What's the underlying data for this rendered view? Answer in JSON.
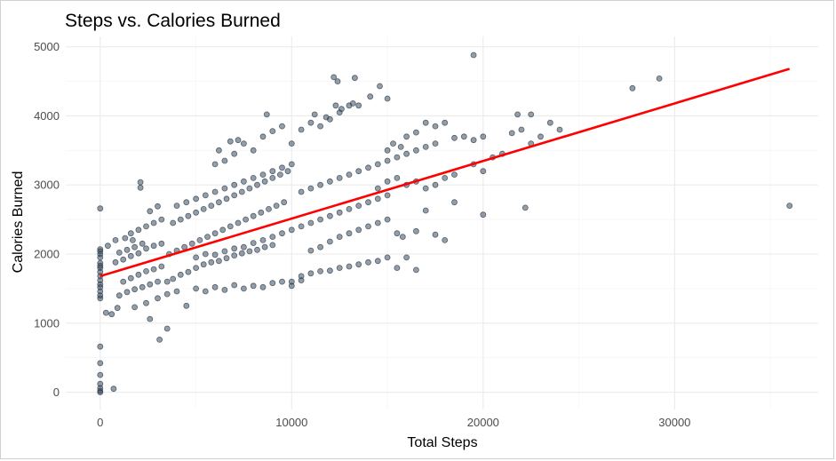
{
  "chart_data": {
    "type": "scatter",
    "title": "Steps vs. Calories Burned",
    "xlabel": "Total Steps",
    "ylabel": "Calories Burned",
    "xlim": [
      -1800,
      37500
    ],
    "ylim": [
      -250,
      5150
    ],
    "x_ticks": [
      0,
      10000,
      20000,
      30000
    ],
    "x_tick_labels": [
      "0",
      "10000",
      "20000",
      "30000"
    ],
    "y_ticks": [
      0,
      1000,
      2000,
      3000,
      4000,
      5000
    ],
    "y_tick_labels": [
      "0",
      "1000",
      "2000",
      "3000",
      "4000",
      "5000"
    ],
    "grid": true,
    "point_color": "#2c3e50",
    "trend_color": "#ff0000",
    "trend_line": {
      "x": [
        0,
        36000
      ],
      "y": [
        1680,
        4680
      ]
    },
    "points": [
      [
        0,
        0
      ],
      [
        0,
        20
      ],
      [
        0,
        60
      ],
      [
        0,
        120
      ],
      [
        0,
        250
      ],
      [
        0,
        420
      ],
      [
        0,
        660
      ],
      [
        700,
        50
      ],
      [
        0,
        1360
      ],
      [
        0,
        1400
      ],
      [
        0,
        1460
      ],
      [
        0,
        1520
      ],
      [
        0,
        1560
      ],
      [
        0,
        1620
      ],
      [
        0,
        1680
      ],
      [
        0,
        1740
      ],
      [
        0,
        1800
      ],
      [
        0,
        1830
      ],
      [
        0,
        1870
      ],
      [
        0,
        1950
      ],
      [
        0,
        2000
      ],
      [
        0,
        2040
      ],
      [
        0,
        2070
      ],
      [
        0,
        2660
      ],
      [
        300,
        1150
      ],
      [
        600,
        1130
      ],
      [
        900,
        1220
      ],
      [
        400,
        2120
      ],
      [
        800,
        2200
      ],
      [
        1300,
        2230
      ],
      [
        1700,
        2200
      ],
      [
        1000,
        1400
      ],
      [
        1400,
        1450
      ],
      [
        1800,
        1490
      ],
      [
        2200,
        1520
      ],
      [
        2600,
        1560
      ],
      [
        3000,
        1600
      ],
      [
        1200,
        1600
      ],
      [
        1600,
        1650
      ],
      [
        2000,
        1700
      ],
      [
        2400,
        1750
      ],
      [
        2800,
        1780
      ],
      [
        3200,
        1820
      ],
      [
        800,
        1880
      ],
      [
        1200,
        1920
      ],
      [
        1600,
        1970
      ],
      [
        2000,
        2010
      ],
      [
        2400,
        2080
      ],
      [
        2800,
        2120
      ],
      [
        3200,
        2150
      ],
      [
        1000,
        2020
      ],
      [
        1400,
        2060
      ],
      [
        1800,
        2100
      ],
      [
        2200,
        2150
      ],
      [
        1600,
        2300
      ],
      [
        2000,
        2350
      ],
      [
        2400,
        2400
      ],
      [
        2800,
        2450
      ],
      [
        3200,
        2500
      ],
      [
        2100,
        2960
      ],
      [
        2100,
        3040
      ],
      [
        2600,
        2620
      ],
      [
        3000,
        2690
      ],
      [
        1800,
        1230
      ],
      [
        2400,
        1290
      ],
      [
        3000,
        1360
      ],
      [
        3500,
        1420
      ],
      [
        4000,
        1460
      ],
      [
        3100,
        760
      ],
      [
        3500,
        920
      ],
      [
        2600,
        1060
      ],
      [
        4500,
        1250
      ],
      [
        3500,
        1600
      ],
      [
        3800,
        1640
      ],
      [
        4200,
        1700
      ],
      [
        4600,
        1740
      ],
      [
        5000,
        1800
      ],
      [
        5400,
        1850
      ],
      [
        5800,
        1880
      ],
      [
        6200,
        1900
      ],
      [
        6600,
        1940
      ],
      [
        7000,
        1980
      ],
      [
        7400,
        2010
      ],
      [
        7800,
        2040
      ],
      [
        8200,
        2060
      ],
      [
        8600,
        2100
      ],
      [
        9000,
        2130
      ],
      [
        3600,
        2000
      ],
      [
        4000,
        2050
      ],
      [
        4400,
        2100
      ],
      [
        4800,
        2150
      ],
      [
        5200,
        2200
      ],
      [
        5600,
        2250
      ],
      [
        6000,
        2300
      ],
      [
        6400,
        2350
      ],
      [
        6800,
        2400
      ],
      [
        7200,
        2450
      ],
      [
        7600,
        2500
      ],
      [
        8000,
        2550
      ],
      [
        8400,
        2600
      ],
      [
        8800,
        2650
      ],
      [
        9200,
        2700
      ],
      [
        9600,
        2750
      ],
      [
        3800,
        2450
      ],
      [
        4200,
        2500
      ],
      [
        4600,
        2550
      ],
      [
        5000,
        2600
      ],
      [
        5400,
        2650
      ],
      [
        5800,
        2700
      ],
      [
        6200,
        2750
      ],
      [
        6600,
        2800
      ],
      [
        7000,
        2850
      ],
      [
        7400,
        2900
      ],
      [
        7800,
        2950
      ],
      [
        8200,
        3000
      ],
      [
        8600,
        3050
      ],
      [
        9000,
        3100
      ],
      [
        9400,
        3150
      ],
      [
        9800,
        3200
      ],
      [
        4000,
        2700
      ],
      [
        4500,
        2750
      ],
      [
        5000,
        2800
      ],
      [
        5500,
        2850
      ],
      [
        6000,
        2900
      ],
      [
        6500,
        2950
      ],
      [
        7000,
        3000
      ],
      [
        7500,
        3050
      ],
      [
        8000,
        3100
      ],
      [
        8500,
        3150
      ],
      [
        9000,
        3200
      ],
      [
        9500,
        3250
      ],
      [
        10000,
        3300
      ],
      [
        5000,
        1500
      ],
      [
        5500,
        1460
      ],
      [
        6000,
        1520
      ],
      [
        6500,
        1480
      ],
      [
        7000,
        1550
      ],
      [
        7500,
        1500
      ],
      [
        8000,
        1540
      ],
      [
        8500,
        1520
      ],
      [
        9000,
        1580
      ],
      [
        9500,
        1600
      ],
      [
        10000,
        1540
      ],
      [
        10500,
        1620
      ],
      [
        5000,
        1950
      ],
      [
        5500,
        2000
      ],
      [
        6000,
        1990
      ],
      [
        6500,
        2040
      ],
      [
        7000,
        2080
      ],
      [
        7500,
        2100
      ],
      [
        8000,
        2160
      ],
      [
        8500,
        2200
      ],
      [
        9000,
        2250
      ],
      [
        9500,
        2300
      ],
      [
        10000,
        2350
      ],
      [
        10500,
        2400
      ],
      [
        11000,
        2450
      ],
      [
        11500,
        2500
      ],
      [
        12000,
        2550
      ],
      [
        12500,
        2600
      ],
      [
        13000,
        2650
      ],
      [
        13500,
        2700
      ],
      [
        14000,
        2750
      ],
      [
        14500,
        2800
      ],
      [
        15000,
        2850
      ],
      [
        6000,
        3300
      ],
      [
        6500,
        3350
      ],
      [
        7000,
        3450
      ],
      [
        7500,
        3600
      ],
      [
        8000,
        3500
      ],
      [
        8500,
        3700
      ],
      [
        9000,
        3780
      ],
      [
        9500,
        3850
      ],
      [
        10000,
        3600
      ],
      [
        10500,
        3800
      ],
      [
        11000,
        3900
      ],
      [
        11500,
        3850
      ],
      [
        12000,
        3950
      ],
      [
        12500,
        4050
      ],
      [
        13000,
        4150
      ],
      [
        6200,
        3500
      ],
      [
        6800,
        3630
      ],
      [
        7200,
        3650
      ],
      [
        8700,
        4020
      ],
      [
        11200,
        4020
      ],
      [
        11800,
        3980
      ],
      [
        12300,
        4150
      ],
      [
        12600,
        4100
      ],
      [
        13200,
        4180
      ],
      [
        13500,
        4150
      ],
      [
        12200,
        4560
      ],
      [
        12400,
        4500
      ],
      [
        13300,
        4550
      ],
      [
        14100,
        4280
      ],
      [
        14600,
        4430
      ],
      [
        15000,
        4250
      ],
      [
        10000,
        1600
      ],
      [
        10500,
        1680
      ],
      [
        11000,
        1720
      ],
      [
        11500,
        1750
      ],
      [
        12000,
        1760
      ],
      [
        12500,
        1800
      ],
      [
        13000,
        1820
      ],
      [
        13500,
        1850
      ],
      [
        14000,
        1880
      ],
      [
        14500,
        1900
      ],
      [
        15000,
        1950
      ],
      [
        15500,
        2300
      ],
      [
        15800,
        2250
      ],
      [
        15500,
        1800
      ],
      [
        16000,
        1950
      ],
      [
        16500,
        1770
      ],
      [
        11000,
        2050
      ],
      [
        11500,
        2100
      ],
      [
        12000,
        2180
      ],
      [
        12500,
        2250
      ],
      [
        13000,
        2300
      ],
      [
        13500,
        2350
      ],
      [
        14000,
        2400
      ],
      [
        14500,
        2450
      ],
      [
        15000,
        2500
      ],
      [
        10500,
        2900
      ],
      [
        11000,
        2950
      ],
      [
        11500,
        3000
      ],
      [
        12000,
        3050
      ],
      [
        12500,
        3100
      ],
      [
        13000,
        3150
      ],
      [
        13500,
        3200
      ],
      [
        14000,
        3250
      ],
      [
        14500,
        3300
      ],
      [
        15000,
        3350
      ],
      [
        15500,
        3400
      ],
      [
        16000,
        3450
      ],
      [
        16500,
        3500
      ],
      [
        17000,
        3550
      ],
      [
        17500,
        3600
      ],
      [
        14500,
        2950
      ],
      [
        15000,
        3050
      ],
      [
        15500,
        3100
      ],
      [
        16000,
        3000
      ],
      [
        16500,
        3050
      ],
      [
        17000,
        2950
      ],
      [
        17500,
        3000
      ],
      [
        18000,
        3100
      ],
      [
        18500,
        3150
      ],
      [
        15000,
        3500
      ],
      [
        15300,
        3600
      ],
      [
        15700,
        3550
      ],
      [
        16000,
        3700
      ],
      [
        16500,
        3760
      ],
      [
        17000,
        3900
      ],
      [
        17500,
        3850
      ],
      [
        18000,
        3900
      ],
      [
        18500,
        3680
      ],
      [
        19000,
        3700
      ],
      [
        19500,
        3650
      ],
      [
        20000,
        3700
      ],
      [
        16500,
        2330
      ],
      [
        17000,
        2630
      ],
      [
        17500,
        2280
      ],
      [
        18000,
        2200
      ],
      [
        18500,
        2750
      ],
      [
        19500,
        3300
      ],
      [
        20000,
        3200
      ],
      [
        20000,
        2570
      ],
      [
        20500,
        3400
      ],
      [
        21000,
        3450
      ],
      [
        21500,
        3750
      ],
      [
        22000,
        3800
      ],
      [
        22500,
        3600
      ],
      [
        22200,
        2670
      ],
      [
        23000,
        3700
      ],
      [
        23500,
        3900
      ],
      [
        24000,
        3800
      ],
      [
        21800,
        4020
      ],
      [
        22500,
        4020
      ],
      [
        19500,
        4880
      ],
      [
        27800,
        4400
      ],
      [
        29200,
        4540
      ],
      [
        36000,
        2700
      ]
    ]
  }
}
